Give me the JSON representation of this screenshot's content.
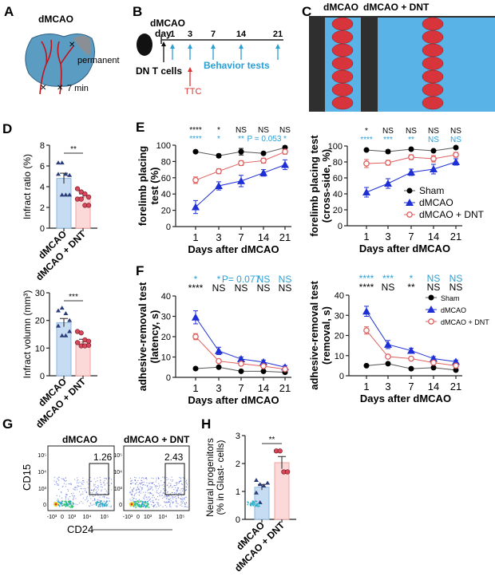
{
  "panels": {
    "A": "A",
    "B": "B",
    "C": "C",
    "D": "D",
    "E": "E",
    "F": "F",
    "G": "G",
    "H": "H"
  },
  "panel_a": {
    "title": "dMCAO",
    "permanent": "permanent",
    "min7": "7 min"
  },
  "panel_b": {
    "dmcao": "dMCAO",
    "day": "day",
    "days": [
      "1",
      "3",
      "7",
      "14",
      "21"
    ],
    "dnt": "DN T cells",
    "ttc": "TTC",
    "behavior": "Behavior tests"
  },
  "panel_c": {
    "left": "dMCAO",
    "right": "dMCAO + DNT"
  },
  "panel_g": {
    "left": "dMCAO",
    "right": "dMCAO + DNT",
    "left_gate": "1.26",
    "right_gate": "2.43",
    "ylabel": "CD15",
    "xlabel": "CD24",
    "yticks": [
      "0",
      "10³",
      "10⁴",
      "10⁵"
    ],
    "xticks": [
      "-10³",
      "0",
      "10³",
      "10⁴",
      "10⁵"
    ]
  },
  "colors": {
    "sham": "#000000",
    "dmcao": "#1f2fd6",
    "dnt": "#e0605f",
    "sig_blue": "#2a9fd6",
    "bar_blue": "#c5dcf3",
    "bar_red": "#fbd9d8"
  },
  "chart_data": [
    {
      "id": "D-top",
      "type": "bar",
      "ylabel": "Infract ratio (%)",
      "categories": [
        "dMCAO",
        "dMCAO + DNT"
      ],
      "ylim": [
        0,
        8
      ],
      "yticks": [
        0,
        2,
        4,
        6,
        8
      ],
      "means": [
        4.8,
        3.0
      ],
      "sem": [
        0.5,
        0.3
      ],
      "points": [
        [
          6.3,
          6.3,
          5.2,
          5.1,
          5.2,
          3.2,
          3.2,
          3.2
        ],
        [
          3.8,
          3.5,
          3.3,
          3.0,
          2.8,
          2.8,
          2.2,
          2.2
        ]
      ],
      "sig": "**"
    },
    {
      "id": "D-bottom",
      "type": "bar",
      "ylabel": "Infract volumn (mm³)",
      "categories": [
        "dMCAO",
        "dMCAO + DNT"
      ],
      "ylim": [
        0,
        30
      ],
      "yticks": [
        0,
        10,
        20,
        30
      ],
      "means": [
        19.2,
        12.3
      ],
      "sem": [
        1.5,
        0.9
      ],
      "points": [
        [
          23.5,
          24.5,
          22.5,
          20,
          18,
          14.5,
          14.5,
          16
        ],
        [
          16,
          15.5,
          13,
          12.5,
          12,
          10.8,
          10.8,
          11
        ]
      ],
      "sig": "***"
    },
    {
      "id": "E-left",
      "type": "line",
      "ylabel": [
        "forelimb placing",
        "test (%)"
      ],
      "xlabel": "Days after dMCAO",
      "categories": [
        "1",
        "3",
        "7",
        "14",
        "21"
      ],
      "ylim": [
        0,
        100
      ],
      "yticks": [
        0,
        20,
        40,
        60,
        80,
        100
      ],
      "series": [
        {
          "name": "Sham",
          "values": [
            92,
            87,
            92,
            90,
            97
          ],
          "err": [
            1,
            2,
            4,
            1,
            2
          ]
        },
        {
          "name": "dMCAO",
          "values": [
            24,
            50,
            56,
            66,
            76
          ],
          "err": [
            8,
            5,
            7,
            4,
            6
          ]
        },
        {
          "name": "dMCAO + DNT",
          "values": [
            57,
            68,
            78,
            81,
            92
          ],
          "err": [
            4,
            3,
            3,
            3,
            3
          ]
        }
      ],
      "sig_black": [
        "****",
        "*",
        "NS",
        "NS",
        "NS"
      ],
      "sig_blue": [
        "****",
        "*",
        "**",
        "P = 0.053",
        "*"
      ],
      "sig_order": "black-top"
    },
    {
      "id": "E-right",
      "type": "line",
      "ylabel": [
        "forelimb placing test",
        "(cross-side, %)"
      ],
      "xlabel": "Days after dMCAO",
      "categories": [
        "1",
        "3",
        "7",
        "14",
        "21"
      ],
      "ylim": [
        0,
        100
      ],
      "yticks": [
        0,
        20,
        40,
        60,
        80,
        100
      ],
      "series": [
        {
          "name": "Sham",
          "values": [
            95,
            93,
            96,
            94,
            98
          ],
          "err": [
            1,
            2,
            1,
            1,
            1
          ]
        },
        {
          "name": "dMCAO",
          "values": [
            42,
            53,
            67,
            71,
            80
          ],
          "err": [
            6,
            6,
            4,
            6,
            4
          ]
        },
        {
          "name": "dMCAO + DNT",
          "values": [
            78,
            79,
            86,
            84,
            89
          ],
          "err": [
            5,
            3,
            3,
            4,
            3
          ]
        }
      ],
      "sig_black": [
        "*",
        "NS",
        "NS",
        "NS",
        "NS"
      ],
      "sig_blue": [
        "****",
        "***",
        "**",
        "NS",
        "NS"
      ],
      "sig_order": "black-top",
      "legend": "bottom-right"
    },
    {
      "id": "F-left",
      "type": "line",
      "ylabel": [
        "adhesive-removal test",
        "(latency, s)"
      ],
      "xlabel": "Days after dMCAO",
      "categories": [
        "1",
        "3",
        "7",
        "14",
        "21"
      ],
      "ylim": [
        0,
        40
      ],
      "yticks": [
        0,
        10,
        20,
        30,
        40
      ],
      "series": [
        {
          "name": "Sham",
          "values": [
            4.3,
            5,
            3,
            3,
            2.5
          ],
          "err": [
            0.3,
            0.4,
            0.3,
            0.3,
            0.3
          ]
        },
        {
          "name": "dMCAO",
          "values": [
            29.5,
            13,
            9,
            7.5,
            5
          ],
          "err": [
            3.2,
            1.8,
            1,
            1,
            0.8
          ]
        },
        {
          "name": "dMCAO + DNT",
          "values": [
            20,
            8,
            6.7,
            5.5,
            4
          ],
          "err": [
            1.5,
            0.8,
            0.7,
            0.6,
            0.5
          ]
        }
      ],
      "sig_black": [
        "****",
        "NS",
        "NS",
        "NS",
        "NS"
      ],
      "sig_blue": [
        "*",
        "*",
        "P= 0.077",
        "NS",
        "NS"
      ],
      "sig_order": "blue-top"
    },
    {
      "id": "F-right",
      "type": "line",
      "ylabel": [
        "adhesive-removal test",
        "(removal, s)"
      ],
      "xlabel": "Days after dMCAO",
      "categories": [
        "1",
        "3",
        "7",
        "14",
        "21"
      ],
      "ylim": [
        0,
        40
      ],
      "yticks": [
        0,
        10,
        20,
        30,
        40
      ],
      "series": [
        {
          "name": "Sham",
          "values": [
            5,
            6,
            3.5,
            4,
            2.8
          ],
          "err": [
            0.3,
            0.4,
            0.3,
            0.3,
            0.3
          ]
        },
        {
          "name": "dMCAO",
          "values": [
            32,
            15.5,
            12.5,
            8.5,
            7
          ],
          "err": [
            2.5,
            2,
            1.2,
            1,
            0.8
          ]
        },
        {
          "name": "dMCAO + DNT",
          "values": [
            22.5,
            9.5,
            8.5,
            6.5,
            5
          ],
          "err": [
            1.8,
            0.8,
            0.7,
            0.6,
            0.5
          ]
        }
      ],
      "sig_black": [
        "****",
        "NS",
        "**",
        "NS",
        "NS"
      ],
      "sig_blue": [
        "****",
        "***",
        "*",
        "NS",
        "NS"
      ],
      "sig_order": "blue-top",
      "legend": "top-right"
    },
    {
      "id": "H",
      "type": "bar",
      "ylabel": [
        "Neural progenitors",
        "(% in Glast- cells)"
      ],
      "categories": [
        "dMCAO",
        "dMCAO + DNT"
      ],
      "ylim": [
        0,
        3
      ],
      "yticks": [
        0,
        1,
        2,
        3
      ],
      "means": [
        1.15,
        2.03
      ],
      "sem": [
        0.1,
        0.22
      ],
      "points": [
        [
          1.4,
          1.25,
          1.2,
          1.3,
          0.95,
          0.6
        ],
        [
          2.45,
          2.45,
          1.7,
          1.7
        ]
      ],
      "sig": "**"
    }
  ]
}
